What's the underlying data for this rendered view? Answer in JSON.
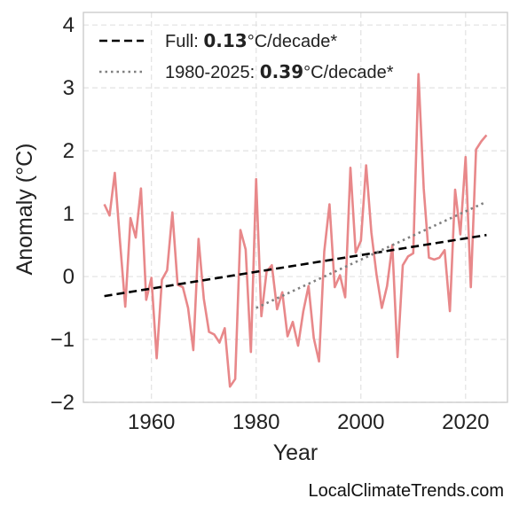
{
  "chart_data": {
    "type": "line",
    "xlabel": "Year",
    "ylabel": "Anomaly (°C)",
    "xlim": [
      1947,
      2028
    ],
    "ylim": [
      -2,
      4.2
    ],
    "xticks": [
      1960,
      1980,
      2000,
      2020
    ],
    "yticks": [
      -2,
      -1,
      0,
      1,
      2,
      3,
      4
    ],
    "ytick_labels": [
      "−2",
      "−1",
      "0",
      "1",
      "2",
      "3",
      "4"
    ],
    "grid": true,
    "legend_position": "top-left",
    "series": [
      {
        "kind": "anomaly",
        "color": "#e8888a",
        "x": [
          1951,
          1952,
          1953,
          1954,
          1955,
          1956,
          1957,
          1958,
          1959,
          1960,
          1961,
          1962,
          1963,
          1964,
          1965,
          1966,
          1967,
          1968,
          1969,
          1970,
          1971,
          1972,
          1973,
          1974,
          1975,
          1976,
          1977,
          1978,
          1979,
          1980,
          1981,
          1982,
          1983,
          1984,
          1985,
          1986,
          1987,
          1988,
          1989,
          1990,
          1991,
          1992,
          1993,
          1994,
          1995,
          1996,
          1997,
          1998,
          1999,
          2000,
          2001,
          2002,
          2003,
          2004,
          2005,
          2006,
          2007,
          2008,
          2009,
          2010,
          2011,
          2012,
          2013,
          2014,
          2015,
          2016,
          2017,
          2018,
          2019,
          2020,
          2021,
          2022,
          2023,
          2024
        ],
        "y": [
          1.15,
          0.97,
          1.65,
          0.55,
          -0.48,
          0.93,
          0.62,
          1.4,
          -0.37,
          -0.02,
          -1.3,
          -0.05,
          0.1,
          1.02,
          -0.13,
          -0.17,
          -0.5,
          -1.17,
          0.6,
          -0.35,
          -0.88,
          -0.92,
          -1.05,
          -0.82,
          -1.75,
          -1.63,
          0.74,
          0.43,
          -1.2,
          1.55,
          -0.63,
          0.08,
          0.18,
          -0.52,
          -0.25,
          -0.95,
          -0.72,
          -1.1,
          -0.55,
          -0.15,
          -0.98,
          -1.35,
          0.4,
          1.15,
          -0.17,
          0.02,
          -0.33,
          1.73,
          0.38,
          0.57,
          1.77,
          0.7,
          0.02,
          -0.5,
          -0.15,
          0.5,
          -1.28,
          0.18,
          0.32,
          0.37,
          3.22,
          1.4,
          0.3,
          0.27,
          0.3,
          0.42,
          -0.55,
          1.38,
          0.67,
          1.9,
          -0.17,
          2.02,
          2.15,
          2.25
        ]
      },
      {
        "kind": "trend-full",
        "color": "#000000",
        "x": [
          1951,
          2024
        ],
        "y": [
          -0.31,
          0.66
        ]
      },
      {
        "kind": "trend-recent",
        "color": "#808080",
        "x": [
          1980,
          2024
        ],
        "y": [
          -0.5,
          1.19
        ]
      }
    ],
    "legend": [
      {
        "prefix": "Full: ",
        "value": "0.13",
        "suffix": "°C/decade*",
        "style": "dashed",
        "color": "#000000"
      },
      {
        "prefix": "1980-2025: ",
        "value": "0.39",
        "suffix": "°C/decade*",
        "style": "dotted",
        "color": "#808080"
      }
    ]
  },
  "credit": "LocalClimateTrends.com"
}
